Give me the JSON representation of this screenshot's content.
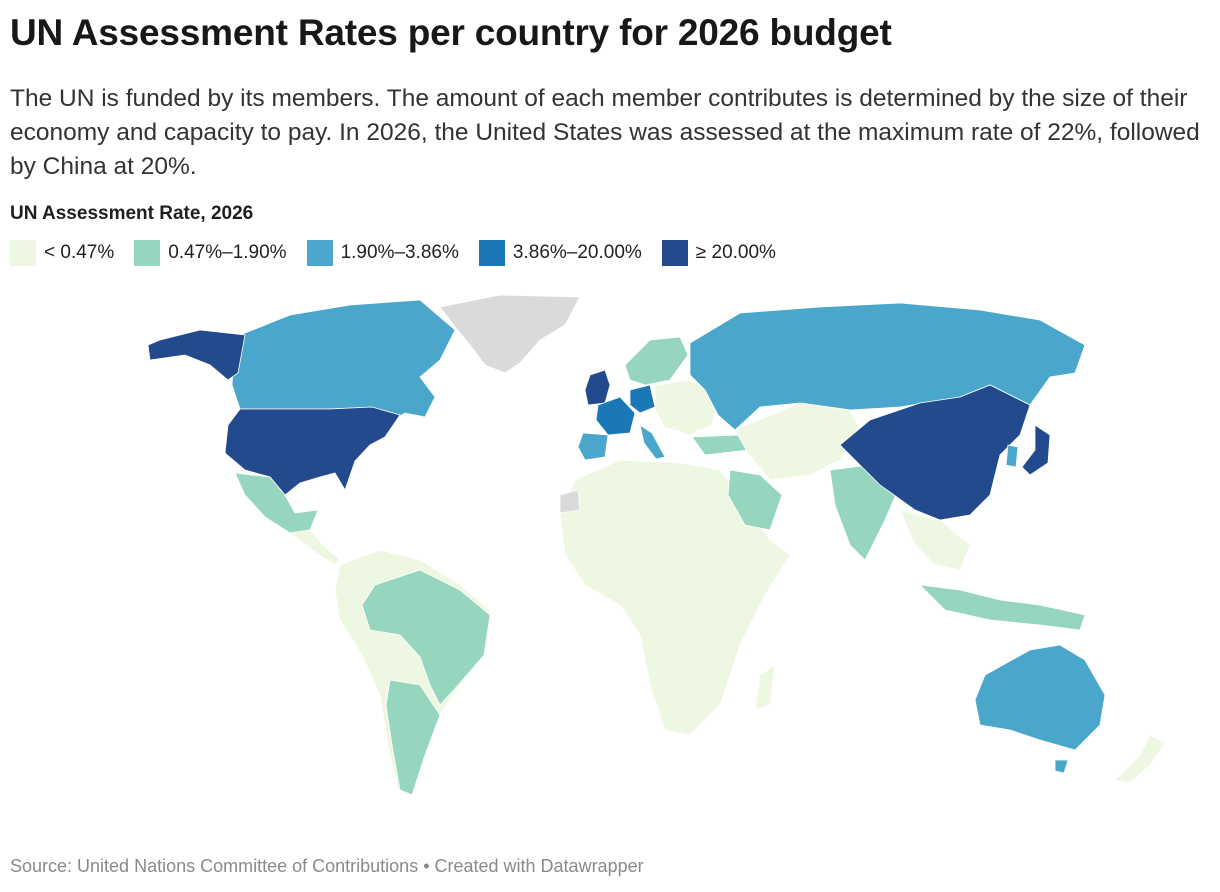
{
  "title": "UN Assessment Rates per country for 2026 budget",
  "description": "The UN is funded by its members. The amount of each member contributes is determined by the size of their economy and capacity to pay. In 2026, the United States was assessed at the maximum rate of 22%, followed by China at 20%.",
  "legend": {
    "title": "UN Assessment Rate, 2026",
    "bins": [
      {
        "label": "< 0.47%",
        "color": "#eef7e2"
      },
      {
        "label": "0.47%–1.90%",
        "color": "#96d5be"
      },
      {
        "label": "1.90%–3.86%",
        "color": "#4aa7cb"
      },
      {
        "label": "3.86%–20.00%",
        "color": "#1b78b6"
      },
      {
        "label": "≥ 20.00%",
        "color": "#234a8c"
      }
    ],
    "no_data_color": "#dadada"
  },
  "source": "Source: United Nations Committee of Contributions • Created with Datawrapper"
}
